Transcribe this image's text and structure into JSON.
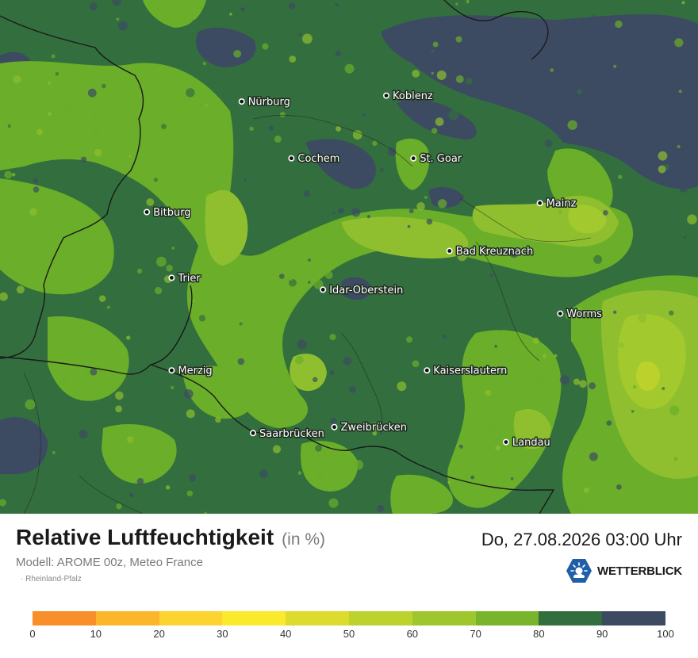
{
  "title": "Relative Luftfeuchtigkeit",
  "unit": "(in %)",
  "datetime": "Do, 27.08.2026 03:00 Uhr",
  "model": "Modell: AROME 00z, Meteo France",
  "region": "· Rheinland-Pfalz",
  "brand": "WETTERBLICK",
  "icon": "sun-cloud-logo-icon",
  "colors": {
    "c40_50": "#bcd12b",
    "c50_60": "#a2c92d",
    "c60_70": "#8fbf2f",
    "c70_80": "#6aae29",
    "c80_90": "#336f3e",
    "c90_100": "#3c4b62",
    "border": "#1a1a1a"
  },
  "legend": {
    "colors": [
      "#f98f2a",
      "#fbb62c",
      "#fdd42f",
      "#fbea2b",
      "#dddb2d",
      "#bdd22c",
      "#9dc72d",
      "#78b42c",
      "#336f3e",
      "#3c4b62"
    ],
    "ticks": [
      "0",
      "10",
      "20",
      "30",
      "40",
      "50",
      "60",
      "70",
      "80",
      "90",
      "100"
    ]
  },
  "cities": [
    {
      "name": "Nürburg",
      "lon": 6.95,
      "lat": 50.34
    },
    {
      "name": "Koblenz",
      "lon": 7.59,
      "lat": 50.36
    },
    {
      "name": "Cochem",
      "lon": 7.17,
      "lat": 50.15
    },
    {
      "name": "St. Goar",
      "lon": 7.71,
      "lat": 50.15
    },
    {
      "name": "Bitburg",
      "lon": 6.53,
      "lat": 49.97
    },
    {
      "name": "Mainz",
      "lon": 8.27,
      "lat": 50.0
    },
    {
      "name": "Bad Kreuznach",
      "lon": 7.87,
      "lat": 49.84
    },
    {
      "name": "Trier",
      "lon": 6.64,
      "lat": 49.75
    },
    {
      "name": "Idar-Oberstein",
      "lon": 7.31,
      "lat": 49.71
    },
    {
      "name": "Worms",
      "lon": 8.36,
      "lat": 49.63
    },
    {
      "name": "Merzig",
      "lon": 6.64,
      "lat": 49.44
    },
    {
      "name": "Kaiserslautern",
      "lon": 7.77,
      "lat": 49.44
    },
    {
      "name": "Saarbrücken",
      "lon": 7.0,
      "lat": 49.23
    },
    {
      "name": "Zweibrücken",
      "lon": 7.36,
      "lat": 49.25
    },
    {
      "name": "Landau",
      "lon": 8.12,
      "lat": 49.2
    }
  ]
}
